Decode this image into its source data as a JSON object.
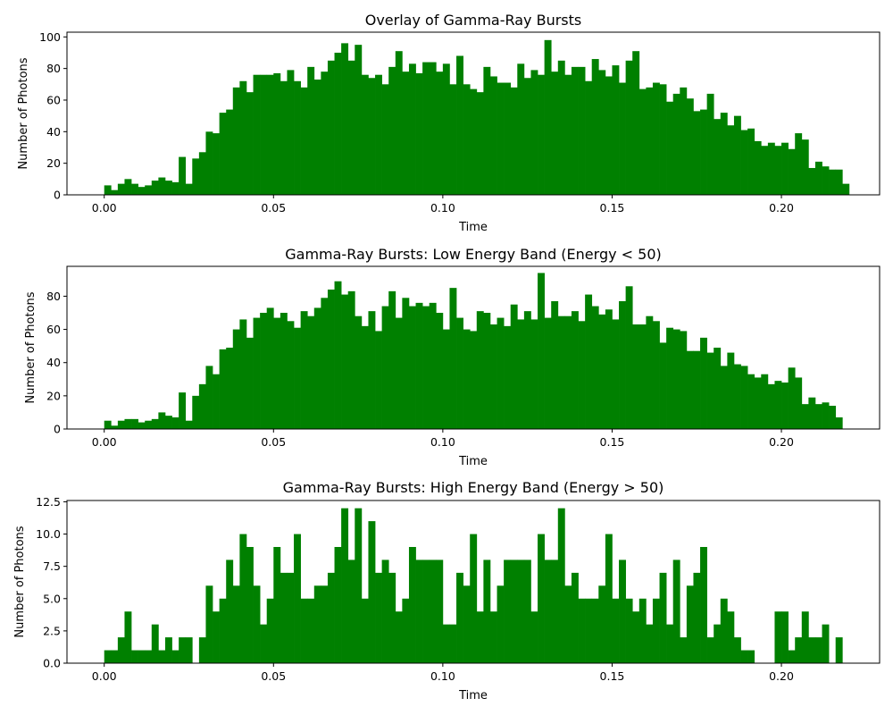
{
  "colors": {
    "bars": "#008000",
    "axis": "#000000",
    "background": "#ffffff"
  },
  "chart_data": [
    {
      "type": "bar",
      "title": "Overlay of Gamma-Ray Bursts",
      "xlabel": "Time",
      "ylabel": "Number of Photons",
      "xlim": [
        -0.011,
        0.229
      ],
      "ylim": [
        0,
        103
      ],
      "xticks": [
        0.0,
        0.05,
        0.1,
        0.15,
        0.2
      ],
      "xtick_labels": [
        "0.00",
        "0.05",
        "0.10",
        "0.15",
        "0.20"
      ],
      "yticks": [
        0,
        20,
        40,
        60,
        80,
        100
      ],
      "ytick_labels": [
        "0",
        "20",
        "40",
        "60",
        "80",
        "100"
      ],
      "bin_start": 0.0,
      "bin_width": 0.002,
      "values": [
        6,
        3,
        7,
        10,
        7,
        5,
        6,
        9,
        11,
        9,
        8,
        24,
        7,
        23,
        27,
        40,
        39,
        52,
        54,
        68,
        72,
        65,
        76,
        76,
        76,
        77,
        72,
        79,
        72,
        68,
        81,
        73,
        78,
        85,
        90,
        96,
        85,
        95,
        76,
        74,
        76,
        70,
        81,
        91,
        78,
        83,
        77,
        84,
        84,
        78,
        83,
        70,
        88,
        70,
        67,
        65,
        81,
        75,
        71,
        71,
        68,
        83,
        74,
        79,
        76,
        98,
        78,
        85,
        76,
        81,
        81,
        72,
        86,
        79,
        75,
        82,
        71,
        85,
        91,
        67,
        68,
        71,
        70,
        59,
        64,
        68,
        61,
        53,
        54,
        64,
        48,
        52,
        44,
        50,
        41,
        42,
        34,
        31,
        33,
        31,
        33,
        29,
        39,
        35,
        17,
        21,
        18,
        16,
        16,
        7
      ],
      "grid": false,
      "legend": "none"
    },
    {
      "type": "bar",
      "title": "Gamma-Ray Bursts: Low Energy Band (Energy < 50)",
      "xlabel": "Time",
      "ylabel": "Number of Photons",
      "xlim": [
        -0.011,
        0.229
      ],
      "ylim": [
        0,
        98
      ],
      "xticks": [
        0.0,
        0.05,
        0.1,
        0.15,
        0.2
      ],
      "xtick_labels": [
        "0.00",
        "0.05",
        "0.10",
        "0.15",
        "0.20"
      ],
      "yticks": [
        0,
        20,
        40,
        60,
        80
      ],
      "ytick_labels": [
        "0",
        "20",
        "40",
        "60",
        "80"
      ],
      "bin_start": 0.0,
      "bin_width": 0.002,
      "values": [
        5,
        2,
        5,
        6,
        6,
        4,
        5,
        6,
        10,
        8,
        7,
        22,
        5,
        20,
        27,
        38,
        33,
        48,
        49,
        60,
        66,
        55,
        67,
        70,
        73,
        67,
        70,
        65,
        61,
        71,
        68,
        73,
        79,
        84,
        89,
        81,
        83,
        68,
        62,
        71,
        59,
        74,
        83,
        67,
        79,
        74,
        76,
        74,
        76,
        70,
        60,
        85,
        67,
        60,
        59,
        71,
        70,
        63,
        67,
        62,
        75,
        66,
        71,
        66,
        94,
        67,
        77,
        68,
        68,
        71,
        65,
        81,
        74,
        69,
        72,
        66,
        77,
        86,
        63,
        63,
        68,
        65,
        52,
        61,
        60,
        59,
        47,
        47,
        55,
        46,
        49,
        38,
        46,
        39,
        38,
        33,
        31,
        33,
        27,
        29,
        28,
        37,
        31,
        15,
        19,
        15,
        16,
        14,
        7
      ],
      "grid": false,
      "legend": "none"
    },
    {
      "type": "bar",
      "title": "Gamma-Ray Bursts: High Energy Band (Energy > 50)",
      "xlabel": "Time",
      "ylabel": "Number of Photons",
      "xlim": [
        -0.011,
        0.229
      ],
      "ylim": [
        0,
        12.6
      ],
      "xticks": [
        0.0,
        0.05,
        0.1,
        0.15,
        0.2
      ],
      "xtick_labels": [
        "0.00",
        "0.05",
        "0.10",
        "0.15",
        "0.20"
      ],
      "yticks": [
        0,
        2.5,
        5,
        7.5,
        10,
        12.5
      ],
      "ytick_labels": [
        "0.0",
        "2.5",
        "5.0",
        "7.5",
        "10.0",
        "12.5"
      ],
      "bin_start": 0.0,
      "bin_width": 0.002,
      "values": [
        1,
        1,
        2,
        4,
        1,
        1,
        1,
        3,
        1,
        2,
        1,
        2,
        2,
        0,
        2,
        6,
        4,
        5,
        8,
        6,
        10,
        9,
        6,
        3,
        5,
        9,
        7,
        7,
        10,
        5,
        5,
        6,
        6,
        7,
        9,
        12,
        8,
        12,
        5,
        11,
        7,
        8,
        7,
        4,
        5,
        9,
        8,
        8,
        8,
        8,
        3,
        3,
        7,
        6,
        10,
        4,
        8,
        4,
        6,
        8,
        8,
        8,
        8,
        4,
        10,
        8,
        8,
        12,
        6,
        7,
        5,
        5,
        5,
        6,
        10,
        5,
        8,
        5,
        4,
        5,
        3,
        5,
        7,
        3,
        8,
        2,
        6,
        7,
        9,
        2,
        3,
        5,
        4,
        2,
        1,
        1,
        0,
        0,
        0,
        4,
        4,
        1,
        2,
        4,
        2,
        2,
        3,
        0,
        2
      ],
      "grid": false,
      "legend": "none"
    }
  ]
}
